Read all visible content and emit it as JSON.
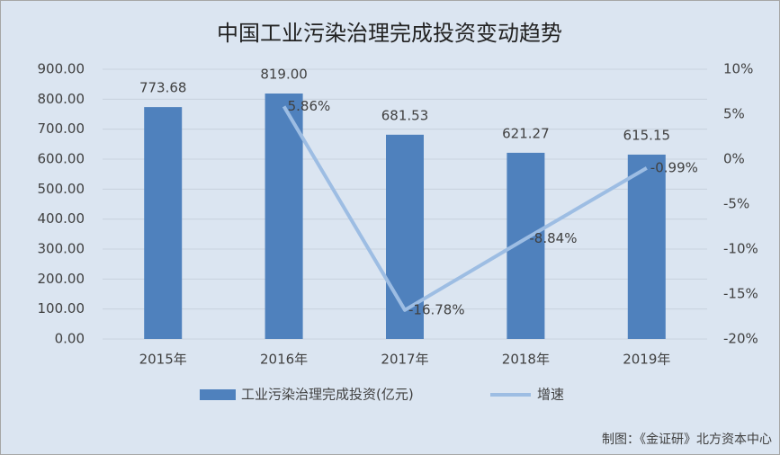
{
  "chart_data": {
    "type": "bar",
    "title": "中国工业污染治理完成投资变动趋势",
    "categories": [
      "2015年",
      "2016年",
      "2017年",
      "2018年",
      "2019年"
    ],
    "series": [
      {
        "name": "工业污染治理完成投资(亿元)",
        "type": "bar",
        "color": "#4f81bd",
        "values": [
          773.68,
          819.0,
          681.53,
          621.27,
          615.15
        ],
        "value_labels": [
          "773.68",
          "819.00",
          "681.53",
          "621.27",
          "615.15"
        ]
      },
      {
        "name": "增速",
        "type": "line",
        "axis": "y2",
        "color": "#9dbde3",
        "values": [
          null,
          5.86,
          -16.78,
          -8.84,
          -0.99
        ],
        "value_labels": [
          null,
          "5.86%",
          "-16.78%",
          "-8.84%",
          "-0.99%"
        ]
      }
    ],
    "ylim": [
      0,
      900
    ],
    "yticks": [
      {
        "value": 0,
        "label": "0.00"
      },
      {
        "value": 100,
        "label": "100.00"
      },
      {
        "value": 200,
        "label": "200.00"
      },
      {
        "value": 300,
        "label": "300.00"
      },
      {
        "value": 400,
        "label": "400.00"
      },
      {
        "value": 500,
        "label": "500.00"
      },
      {
        "value": 600,
        "label": "600.00"
      },
      {
        "value": 700,
        "label": "700.00"
      },
      {
        "value": 800,
        "label": "800.00"
      },
      {
        "value": 900,
        "label": "900.00"
      }
    ],
    "y2lim": [
      -20,
      10
    ],
    "y2ticks": [
      {
        "value": -20,
        "label": "-20%"
      },
      {
        "value": -15,
        "label": "-15%"
      },
      {
        "value": -10,
        "label": "-10%"
      },
      {
        "value": -5,
        "label": "-5%"
      },
      {
        "value": 0,
        "label": "0%"
      },
      {
        "value": 5,
        "label": "5%"
      },
      {
        "value": 10,
        "label": "10%"
      }
    ],
    "grid": true,
    "legend": "bottom",
    "source": "制图：《金证研》北方资本中心"
  }
}
